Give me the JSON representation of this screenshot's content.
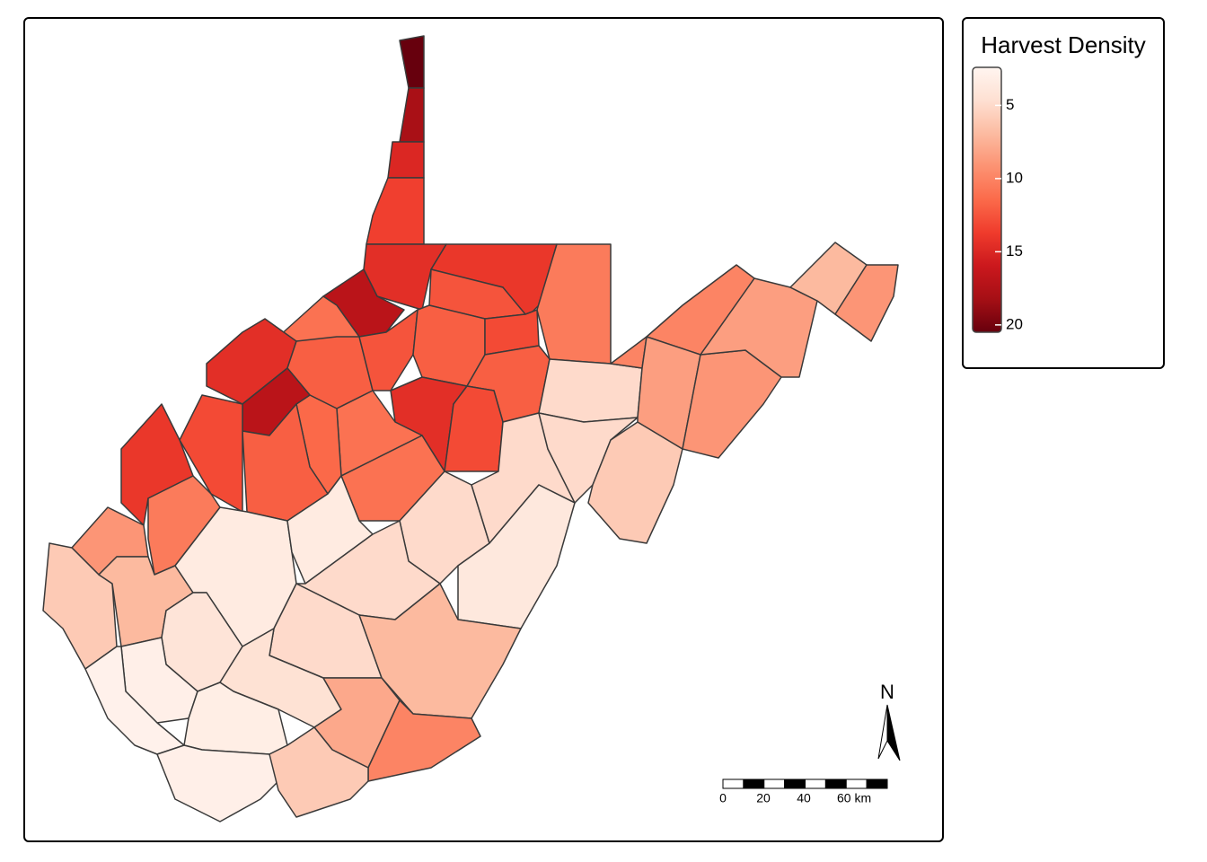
{
  "map": {
    "legend": {
      "title": "Harvest Density",
      "ticks": [
        5,
        10,
        15,
        20
      ],
      "range": [
        2.4,
        20.5
      ],
      "palette": [
        "#fff5f0",
        "#fee0d2",
        "#fcbba1",
        "#fc9272",
        "#fb6a4a",
        "#ef3b2c",
        "#cb181d",
        "#a50f15",
        "#67000d"
      ]
    },
    "county_values": [
      20.5,
      18,
      15,
      13.5,
      14.5,
      17,
      14,
      12.5,
      10.5,
      11,
      14.5,
      12,
      12.5,
      12,
      13,
      12,
      14.5,
      13,
      11,
      11.5,
      17,
      12,
      13,
      14,
      10.5,
      9,
      6,
      7,
      3.5,
      11,
      3.5,
      5,
      5,
      5,
      3.8,
      5,
      5,
      6,
      10,
      8.5,
      9,
      8.5,
      7,
      9,
      5,
      7,
      4.2,
      3,
      2.8,
      4.5,
      3.2,
      3,
      8,
      10,
      6
    ],
    "north_label": "N",
    "scale_bar": {
      "ticks": [
        0,
        20,
        40,
        {
          "value": 60,
          "label": "60 km"
        }
      ]
    }
  }
}
